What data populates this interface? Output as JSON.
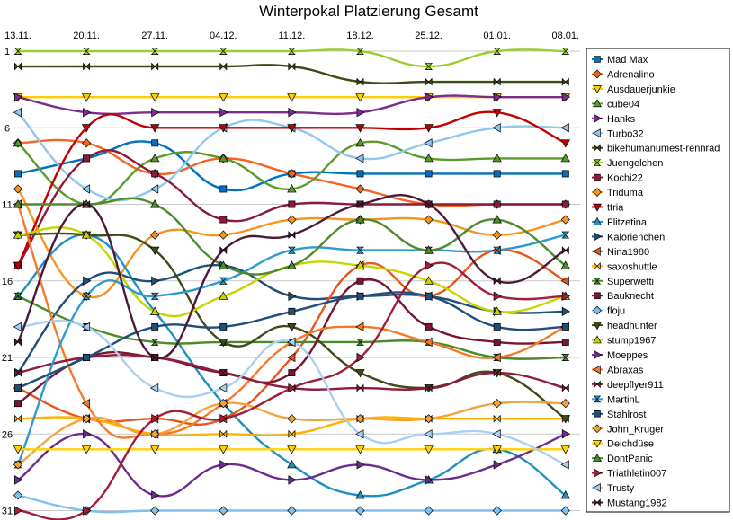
{
  "chart_data": {
    "type": "line",
    "title": "Winterpokal Platzierung Gesamt",
    "xlabel": "",
    "ylabel": "",
    "categories": [
      "13.11.",
      "20.11.",
      "27.11.",
      "04.12.",
      "11.12.",
      "18.12.",
      "25.12.",
      "01.01.",
      "08.01."
    ],
    "y_ticks": [
      1,
      6,
      11,
      16,
      21,
      26,
      31
    ],
    "ylim": [
      31,
      1
    ],
    "y_reversed": true,
    "grid": "horizontal",
    "legend_position": "right",
    "series": [
      {
        "name": "Mad Max",
        "color": "#0070C0",
        "marker": "square",
        "values": [
          9,
          8,
          7,
          10,
          9,
          9,
          9,
          9,
          9
        ]
      },
      {
        "name": "Adrenalino",
        "color": "#F26522",
        "marker": "diamond",
        "values": [
          7,
          7,
          9,
          8,
          9,
          10,
          11,
          11,
          11
        ]
      },
      {
        "name": "Ausdauerjunkie",
        "color": "#FFCC00",
        "marker": "tri-down",
        "values": [
          4,
          4,
          4,
          4,
          4,
          4,
          4,
          4,
          4
        ]
      },
      {
        "name": "cube04",
        "color": "#5B9B2A",
        "marker": "tri-up",
        "values": [
          7,
          11,
          8,
          8,
          10,
          7,
          8,
          8,
          8
        ]
      },
      {
        "name": "Hanks",
        "color": "#7B2C8C",
        "marker": "tri-right",
        "values": [
          4,
          5,
          5,
          5,
          5,
          5,
          4,
          4,
          4
        ]
      },
      {
        "name": "Turbo32",
        "color": "#8FC8EC",
        "marker": "tri-left",
        "values": [
          5,
          10,
          10,
          6,
          6,
          8,
          7,
          6,
          6
        ]
      },
      {
        "name": "bikehumanumest-rennrad",
        "color": "#3C4A18",
        "marker": "bowtie",
        "values": [
          2,
          2,
          2,
          2,
          2,
          3,
          3,
          3,
          3
        ]
      },
      {
        "name": "Juengelchen",
        "color": "#9ACD32",
        "marker": "hourglass",
        "values": [
          1,
          1,
          1,
          1,
          1,
          1,
          2,
          1,
          1
        ]
      },
      {
        "name": "Kochi22",
        "color": "#8B1A3A",
        "marker": "square",
        "values": [
          15,
          8,
          9,
          12,
          11,
          11,
          11,
          11,
          11
        ]
      },
      {
        "name": "Triduma",
        "color": "#F7941D",
        "marker": "diamond",
        "values": [
          10,
          17,
          13,
          13,
          12,
          12,
          12,
          13,
          12
        ]
      },
      {
        "name": "ttria",
        "color": "#C00000",
        "marker": "tri-down",
        "values": [
          15,
          6,
          6,
          6,
          6,
          6,
          6,
          5,
          7
        ]
      },
      {
        "name": "Flitzetina",
        "color": "#1F8FC0",
        "marker": "tri-up",
        "values": [
          17,
          13,
          18,
          24,
          28,
          30,
          29,
          27,
          30
        ]
      },
      {
        "name": "Kalorienchen",
        "color": "#1F4E79",
        "marker": "tri-right",
        "values": [
          22,
          16,
          16,
          15,
          17,
          17,
          17,
          18,
          18
        ]
      },
      {
        "name": "Nina1980",
        "color": "#E8541C",
        "marker": "tri-left",
        "values": [
          23,
          25,
          25,
          25,
          21,
          15,
          17,
          14,
          16
        ]
      },
      {
        "name": "saxoshuttle",
        "color": "#FFB000",
        "marker": "bowtie",
        "values": [
          25,
          25,
          26,
          26,
          26,
          25,
          25,
          25,
          25
        ]
      },
      {
        "name": "Superwetti",
        "color": "#4A8A2A",
        "marker": "hourglass",
        "values": [
          17,
          19,
          20,
          20,
          20,
          20,
          20,
          21,
          21
        ]
      },
      {
        "name": "Bauknecht",
        "color": "#7A1530",
        "marker": "square",
        "values": [
          24,
          21,
          21,
          22,
          22,
          16,
          19,
          20,
          20
        ]
      },
      {
        "name": "floju",
        "color": "#7EC0EE",
        "marker": "diamond",
        "values": [
          30,
          31,
          31,
          31,
          31,
          31,
          31,
          31,
          31
        ]
      },
      {
        "name": "headhunter",
        "color": "#3E4A18",
        "marker": "tri-down",
        "values": [
          13,
          13,
          14,
          20,
          19,
          22,
          23,
          22,
          25
        ]
      },
      {
        "name": "stump1967",
        "color": "#C8D400",
        "marker": "tri-up",
        "values": [
          13,
          13,
          18,
          17,
          15,
          15,
          16,
          18,
          17
        ]
      },
      {
        "name": "Moeppes",
        "color": "#6A2C8E",
        "marker": "tri-right",
        "values": [
          29,
          26,
          30,
          28,
          29,
          28,
          29,
          28,
          26
        ]
      },
      {
        "name": "Abraxas",
        "color": "#F47A2A",
        "marker": "tri-left",
        "values": [
          11,
          24,
          26,
          24,
          20,
          19,
          20,
          21,
          19
        ]
      },
      {
        "name": "deepflyer911",
        "color": "#8E1C3C",
        "marker": "bowtie",
        "values": [
          22,
          21,
          21,
          22,
          23,
          23,
          23,
          22,
          23
        ]
      },
      {
        "name": "MartinL",
        "color": "#2E9AD0",
        "marker": "hourglass",
        "values": [
          28,
          17,
          17,
          16,
          14,
          14,
          14,
          14,
          13
        ]
      },
      {
        "name": "Stahlrost",
        "color": "#1F4E7A",
        "marker": "square",
        "values": [
          23,
          21,
          19,
          19,
          18,
          17,
          17,
          19,
          19
        ]
      },
      {
        "name": "John_Kruger",
        "color": "#F4A23A",
        "marker": "diamond",
        "values": [
          28,
          25,
          26,
          24,
          25,
          25,
          25,
          24,
          24
        ]
      },
      {
        "name": "Deichdüse",
        "color": "#FFD200",
        "marker": "tri-down",
        "values": [
          27,
          27,
          27,
          27,
          27,
          27,
          27,
          27,
          27
        ]
      },
      {
        "name": "DontPanic",
        "color": "#4E8A2E",
        "marker": "tri-up",
        "values": [
          11,
          11,
          11,
          15,
          15,
          12,
          14,
          12,
          15
        ]
      },
      {
        "name": "Triathletin007",
        "color": "#A01E3A",
        "marker": "tri-right",
        "values": [
          31,
          31,
          25,
          25,
          23,
          21,
          15,
          17,
          17
        ]
      },
      {
        "name": "Trusty",
        "color": "#A8D0F0",
        "marker": "tri-left",
        "values": [
          19,
          19,
          23,
          23,
          20,
          26,
          26,
          26,
          28
        ]
      },
      {
        "name": "Mustang1982",
        "color": "#4A1A3A",
        "marker": "bowtie",
        "values": [
          20,
          11,
          21,
          14,
          13,
          11,
          11,
          16,
          14
        ]
      }
    ]
  }
}
